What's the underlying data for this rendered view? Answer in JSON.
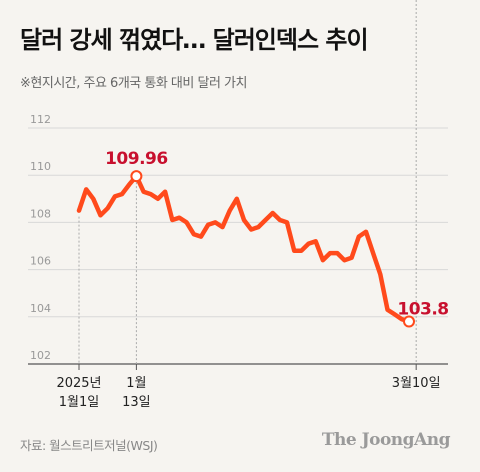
{
  "title": "달러 강세 꺾였다… 달러인덱스 추이",
  "subtitle": "※현지시간, 주요 6개국 통화 대비 달러 가치",
  "source": "자료: 월스트리트저널(WSJ)",
  "logo_text": "The JoongAng",
  "colors": {
    "line": "#ff4a1c",
    "annotation": "#c8102e",
    "background": "#f6f4f0",
    "grid": "#d8d8d8"
  },
  "chart_data": {
    "type": "line",
    "title": "달러 강세 꺾였다… 달러인덱스 추이",
    "subtitle": "※현지시간, 주요 6개국 통화 대비 달러 가치",
    "xlabel": "",
    "ylabel": "",
    "ylim": [
      102,
      112
    ],
    "yticks": [
      102,
      104,
      106,
      108,
      110,
      112
    ],
    "grid": true,
    "x_labels": [
      {
        "index": 0,
        "lines": [
          "2025년",
          "1월1일"
        ]
      },
      {
        "index": 8,
        "lines": [
          "1월",
          "13일"
        ]
      },
      {
        "index": 47,
        "lines": [
          "3월10일"
        ]
      }
    ],
    "values": [
      108.5,
      109.4,
      109.0,
      108.3,
      108.6,
      109.1,
      109.2,
      109.6,
      109.96,
      109.3,
      109.2,
      109.0,
      109.3,
      108.1,
      108.2,
      108.0,
      107.5,
      107.4,
      107.9,
      108.0,
      107.8,
      108.5,
      109.0,
      108.1,
      107.7,
      107.8,
      108.1,
      108.4,
      108.1,
      108.0,
      106.8,
      106.8,
      107.1,
      107.2,
      106.4,
      106.7,
      106.7,
      106.4,
      106.5,
      107.4,
      107.6,
      106.7,
      105.8,
      104.3,
      104.1,
      103.9,
      103.8
    ],
    "annotations": [
      {
        "index": 8,
        "value": 109.96,
        "label": "109.96"
      },
      {
        "index": 46,
        "value": 103.8,
        "label": "103.8"
      }
    ]
  }
}
